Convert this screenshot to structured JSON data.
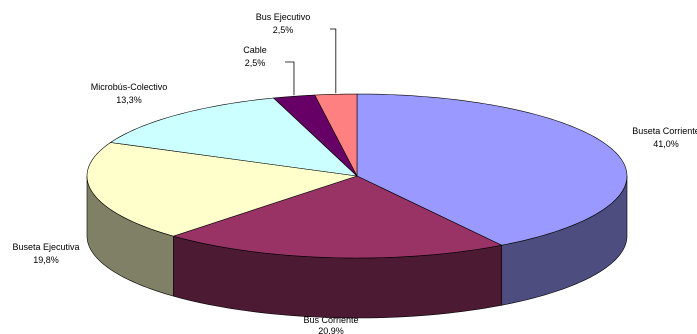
{
  "chart_data": {
    "type": "pie",
    "variant": "3d",
    "title": "",
    "legend": "none",
    "slices": [
      {
        "name": "Buseta Corriente",
        "label": "Buseta Corriente",
        "value_label": "41,0%",
        "value": 41.0,
        "color": "#9999ff",
        "side_color": "#4d4d80"
      },
      {
        "name": "Bus Corriente",
        "label": "Bus Corriente",
        "value_label": "20,9%",
        "value": 20.9,
        "color": "#993366",
        "side_color": "#4d1a33"
      },
      {
        "name": "Buseta Ejecutiva",
        "label": "Buseta Ejecutiva",
        "value_label": "19,8%",
        "value": 19.8,
        "color": "#ffffcc",
        "side_color": "#808066"
      },
      {
        "name": "Microbús-Colectivo",
        "label": "Microbús-Colectivo",
        "value_label": "13,3%",
        "value": 13.3,
        "color": "#ccffff",
        "side_color": "#668080"
      },
      {
        "name": "Cable",
        "label": "Cable",
        "value_label": "2,5%",
        "value": 2.5,
        "color": "#660066",
        "side_color": "#330033"
      },
      {
        "name": "Bus Ejecutivo",
        "label": "Bus Ejecutivo",
        "value_label": "2,5%",
        "value": 2.5,
        "color": "#ff8080",
        "side_color": "#804040"
      }
    ]
  }
}
